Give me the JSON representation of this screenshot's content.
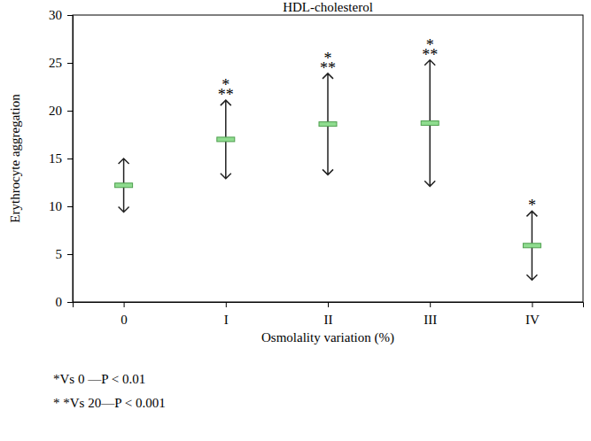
{
  "chart_data": {
    "type": "errorbar",
    "title": "HDL-cholesterol",
    "x_label": "Osmolality variation (%)",
    "y_label": "Erythrocyte aggregation",
    "categories": [
      "0",
      "I",
      "II",
      "III",
      "IV"
    ],
    "values": [
      12.2,
      17.0,
      18.6,
      18.7,
      5.9
    ],
    "errors": [
      2.8,
      4.1,
      5.3,
      6.6,
      3.6
    ],
    "significance": [
      null,
      [
        "*",
        "**"
      ],
      [
        "*",
        "**"
      ],
      [
        "*",
        "**"
      ],
      [
        "*"
      ]
    ],
    "notes": [
      "*Vs 0 —P < 0.01",
      "* *Vs 20—P < 0.001"
    ],
    "color": "#8fdc8f",
    "ylim": [
      0,
      30
    ],
    "yticks": [
      0,
      5,
      10,
      15,
      20,
      25,
      30
    ],
    "grid": false
  }
}
